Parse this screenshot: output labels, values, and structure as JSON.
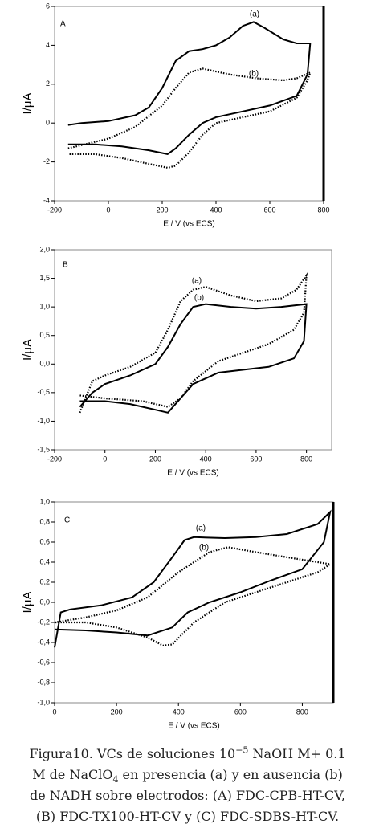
{
  "chart_data": [
    {
      "type": "line",
      "x_label": "E / V (vs ECS)",
      "y_label": "I/μA",
      "annotations": [
        "A",
        "(a)",
        "(b)"
      ],
      "xlim": [
        -200,
        800
      ],
      "xticks": [
        -200,
        0,
        200,
        400,
        600,
        800
      ],
      "ylim": [
        -4,
        6
      ],
      "yticks": [
        -4,
        -2,
        0,
        2,
        4,
        6
      ],
      "series": [
        {
          "color": "#000000",
          "dash": "solid",
          "x": [
            -150,
            -100,
            0,
            100,
            150,
            200,
            250,
            300,
            350,
            400,
            450,
            500,
            540,
            580,
            650,
            700,
            750,
            740,
            700,
            600,
            500,
            400,
            350,
            300,
            250,
            220,
            150,
            50,
            -50,
            -150
          ],
          "values": [
            -0.1,
            0,
            0.1,
            0.4,
            0.8,
            1.8,
            3.2,
            3.7,
            3.8,
            4.0,
            4.4,
            5.0,
            5.2,
            4.9,
            4.3,
            4.1,
            4.1,
            2.5,
            1.4,
            0.9,
            0.6,
            0.3,
            0,
            -0.6,
            -1.3,
            -1.6,
            -1.4,
            -1.2,
            -1.1,
            -1.1
          ]
        },
        {
          "color": "#000000",
          "dash": "dotted",
          "x": [
            -150,
            0,
            100,
            200,
            250,
            300,
            350,
            450,
            550,
            650,
            700,
            750,
            740,
            700,
            600,
            500,
            400,
            350,
            300,
            250,
            220,
            150,
            50,
            -50,
            -150
          ],
          "values": [
            -1.3,
            -0.8,
            -0.2,
            0.9,
            1.8,
            2.6,
            2.8,
            2.5,
            2.3,
            2.2,
            2.3,
            2.6,
            2.2,
            1.3,
            0.6,
            0.3,
            0,
            -0.6,
            -1.5,
            -2.2,
            -2.3,
            -2.1,
            -1.8,
            -1.6,
            -1.6
          ]
        }
      ]
    },
    {
      "type": "line",
      "x_label": "E / V (vs ECS)",
      "y_label": "I/μA",
      "annotations": [
        "B",
        "(a)",
        "(b)"
      ],
      "xlim": [
        -200,
        900
      ],
      "xticks": [
        -200,
        0,
        200,
        400,
        600,
        800
      ],
      "ylim": [
        -1.5,
        2
      ],
      "yticks": [
        {
          "value": -1.5,
          "label": "-1,5"
        },
        {
          "value": -1,
          "label": "-1,0"
        },
        {
          "value": -0.5,
          "label": "-0,5"
        },
        {
          "value": 0,
          "label": "0,0"
        },
        {
          "value": 0.5,
          "label": "0,5"
        },
        {
          "value": 1,
          "label": "1,0"
        },
        {
          "value": 1.5,
          "label": "1,5"
        },
        {
          "value": 2,
          "label": "2,0"
        }
      ],
      "series": [
        {
          "color": "#000000",
          "dash": "dotted",
          "x": [
            -100,
            -50,
            0,
            100,
            200,
            250,
            300,
            350,
            400,
            500,
            600,
            700,
            760,
            800,
            790,
            750,
            650,
            550,
            450,
            350,
            300,
            250,
            150,
            0,
            -100
          ],
          "values": [
            -0.85,
            -0.3,
            -0.2,
            -0.05,
            0.2,
            0.6,
            1.1,
            1.3,
            1.35,
            1.2,
            1.1,
            1.15,
            1.3,
            1.55,
            0.9,
            0.6,
            0.35,
            0.2,
            0.05,
            -0.3,
            -0.6,
            -0.75,
            -0.65,
            -0.6,
            -0.55
          ]
        },
        {
          "color": "#000000",
          "dash": "solid",
          "x": [
            -100,
            -50,
            0,
            100,
            200,
            250,
            300,
            350,
            400,
            500,
            600,
            700,
            800,
            790,
            750,
            650,
            550,
            450,
            350,
            300,
            250,
            200,
            100,
            0,
            -100
          ],
          "values": [
            -0.75,
            -0.5,
            -0.35,
            -0.2,
            0,
            0.3,
            0.7,
            1.0,
            1.05,
            1.0,
            0.97,
            1.0,
            1.05,
            0.4,
            0.1,
            -0.05,
            -0.1,
            -0.15,
            -0.35,
            -0.6,
            -0.85,
            -0.8,
            -0.7,
            -0.65,
            -0.65
          ]
        }
      ]
    },
    {
      "type": "line",
      "x_label": "E / V (vs ECS)",
      "y_label": "I/μA",
      "annotations": [
        "C",
        "(a)",
        "(b)"
      ],
      "xlim": [
        0,
        900
      ],
      "xticks": [
        0,
        200,
        400,
        600,
        800
      ],
      "ylim": [
        -1,
        1
      ],
      "yticks": [
        {
          "value": -1,
          "label": "-1,0"
        },
        {
          "value": -0.8,
          "label": "-0,8"
        },
        {
          "value": -0.6,
          "label": "-0,6"
        },
        {
          "value": -0.4,
          "label": "-0,4"
        },
        {
          "value": -0.2,
          "label": "-0,2"
        },
        {
          "value": 0,
          "label": "0,0"
        },
        {
          "value": 0.2,
          "label": "0,2"
        },
        {
          "value": 0.4,
          "label": "0,4"
        },
        {
          "value": 0.6,
          "label": "0,6"
        },
        {
          "value": 0.8,
          "label": "0,8"
        },
        {
          "value": 1,
          "label": "1,0"
        }
      ],
      "series": [
        {
          "color": "#000000",
          "dash": "solid",
          "x": [
            0,
            20,
            50,
            150,
            250,
            320,
            380,
            420,
            450,
            550,
            650,
            750,
            850,
            890,
            870,
            800,
            700,
            600,
            500,
            430,
            380,
            300,
            200,
            100,
            0
          ],
          "values": [
            -0.45,
            -0.1,
            -0.07,
            -0.03,
            0.05,
            0.2,
            0.45,
            0.62,
            0.65,
            0.64,
            0.65,
            0.68,
            0.78,
            0.9,
            0.6,
            0.33,
            0.22,
            0.1,
            0,
            -0.1,
            -0.25,
            -0.33,
            -0.3,
            -0.28,
            -0.27
          ]
        },
        {
          "color": "#000000",
          "dash": "dotted",
          "x": [
            0,
            100,
            200,
            300,
            400,
            500,
            560,
            650,
            750,
            850,
            890,
            850,
            750,
            650,
            550,
            450,
            380,
            350,
            300,
            200,
            100,
            0
          ],
          "values": [
            -0.2,
            -0.15,
            -0.08,
            0.05,
            0.3,
            0.5,
            0.55,
            0.5,
            0.45,
            0.4,
            0.38,
            0.3,
            0.2,
            0.1,
            0,
            -0.2,
            -0.42,
            -0.43,
            -0.35,
            -0.25,
            -0.2,
            -0.2
          ]
        }
      ]
    }
  ],
  "caption": [
    [
      {
        "text": "Figura10. VCs de soluciones 10"
      },
      {
        "text": "−5",
        "style": "sup"
      },
      {
        "text": " NaOH M+ 0.1"
      }
    ],
    [
      {
        "text": "M de NaClO"
      },
      {
        "text": "4",
        "style": "sub"
      },
      {
        "text": " en presencia (a) y en ausencia (b)"
      }
    ],
    [
      {
        "text": "de NADH sobre electrodos: (A) FDC-CPB-HT-CV,"
      }
    ],
    [
      {
        "text": "(B) FDC-TX100-HT-CV y (C) FDC-SDBS-HT-CV."
      }
    ]
  ]
}
